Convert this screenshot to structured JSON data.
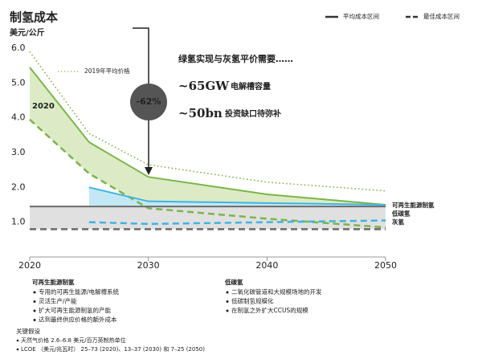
{
  "chart_data": {
    "type": "line",
    "title": "制氢成本",
    "subtitle": "美元/公斤",
    "x": [
      2020,
      2025,
      2030,
      2040,
      2050
    ],
    "xlim": [
      2020,
      2050
    ],
    "xticks": [
      2020,
      2030,
      2040,
      2050
    ],
    "ylim": [
      0,
      6.0
    ],
    "yticks": [
      {
        "value": 1,
        "label": "1.0"
      },
      {
        "value": 2,
        "label": "2.0"
      },
      {
        "value": 3,
        "label": "3.0"
      },
      {
        "value": 4,
        "label": "4.0"
      },
      {
        "value": 5,
        "label": "5.0"
      },
      {
        "value": 6,
        "label": "6.0"
      }
    ],
    "legend": [
      "平均成本区间",
      "最佳成本区间"
    ],
    "series": [
      {
        "name": "可再生能源制氢",
        "color": "#7ab648",
        "fill": "#dcebc6",
        "values": [
          5.45,
          3.3,
          2.3,
          1.8,
          1.5
        ],
        "best": [
          3.95,
          2.4,
          1.4,
          1.1,
          0.85
        ]
      },
      {
        "name": "低碳氢",
        "color": "#3fb4e0",
        "fill": "#c3e7f4",
        "values": [
          null,
          2.0,
          1.6,
          1.55,
          1.5
        ],
        "best": [
          null,
          1.0,
          0.95,
          1.0,
          1.05
        ]
      },
      {
        "name": "灰氢",
        "color": "#6a6a6a",
        "fill": "#e0e0e0",
        "values": [
          1.45,
          1.45,
          1.45,
          1.45,
          1.45
        ],
        "best": [
          0.8,
          0.8,
          0.8,
          0.8,
          0.8
        ]
      }
    ],
    "reference": {
      "name": "2019年平均价格",
      "color": "#7fa83a",
      "values": [
        5.9,
        3.55,
        2.65,
        2.15,
        1.9
      ]
    },
    "start_label": "2020",
    "reduction": "-62%",
    "parity_title": "绿氢实现与灰氢平价需要……",
    "parity_items": [
      {
        "value": "~65GW",
        "label": "电解槽容量"
      },
      {
        "value": "~50bn",
        "label": "投资缺口待弥补"
      }
    ],
    "notes": [
      {
        "title": "可再生能源制氢",
        "items": [
          "专用的可再生能源/电解槽系统",
          "灵活生产/产能",
          "扩大可再生能源制氢的产能",
          "达到最终供应价格的额外成本"
        ]
      },
      {
        "title": "低碳氢",
        "items": [
          "二氧化碳管道和大规模场地的开发",
          "低碳制氢规模化",
          "在制氢之外扩大CCUS的规模"
        ]
      }
    ],
    "assumptions": {
      "title": "关键假设",
      "items": [
        "天然气价格 2.6–6.8 美元/百万英制热单位",
        "LCOE （美元/兆瓦时） 25–73 (2020)、13–37 (2030) 和 7–25 (2050)"
      ]
    }
  }
}
